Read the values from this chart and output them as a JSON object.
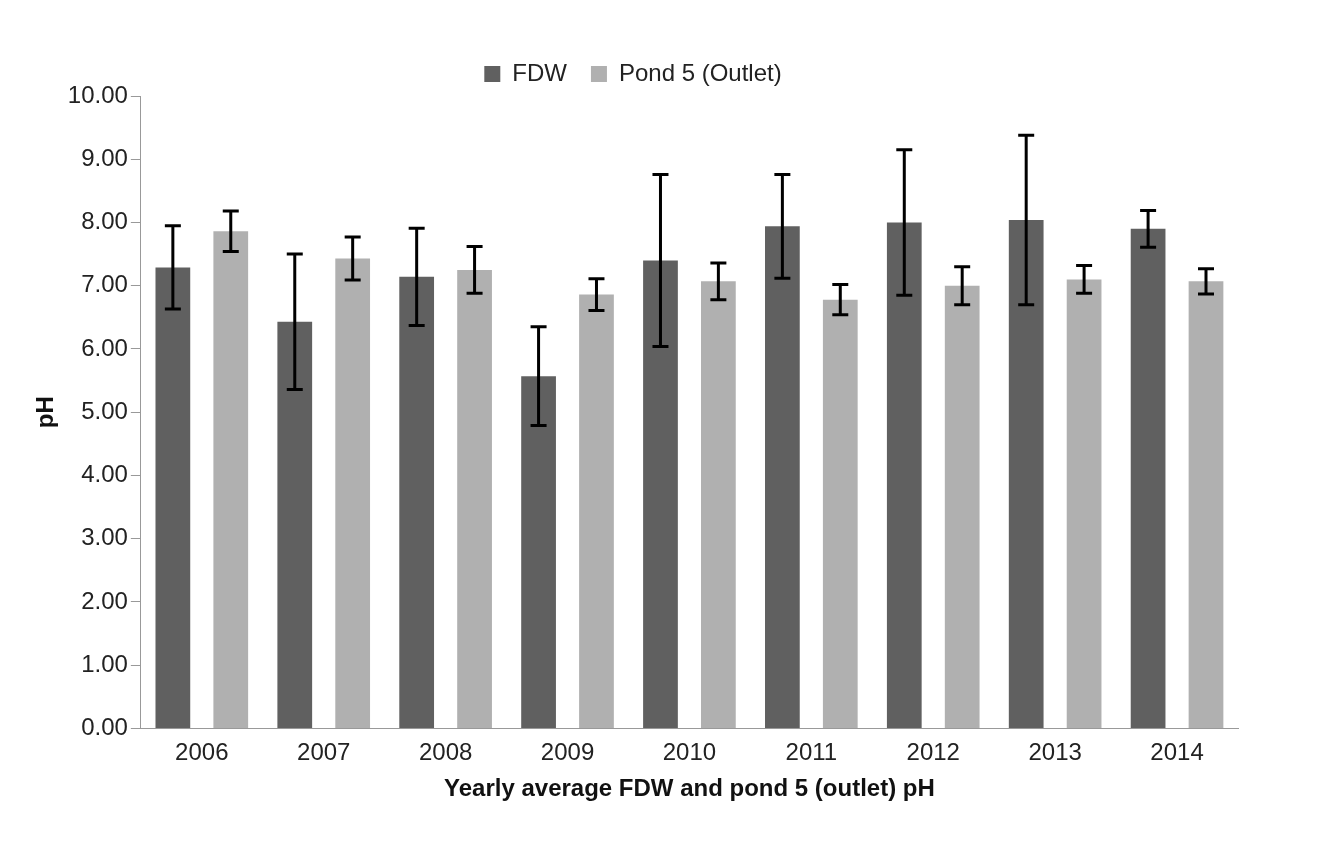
{
  "chart_data": {
    "type": "bar",
    "xlabel": "Yearly average FDW and pond 5 (outlet) pH",
    "ylabel": "pH",
    "categories": [
      "2006",
      "2007",
      "2008",
      "2009",
      "2010",
      "2011",
      "2012",
      "2013",
      "2014"
    ],
    "series": [
      {
        "name": "FDW",
        "color": "#606060",
        "values": [
          7.29,
          6.43,
          7.14,
          5.57,
          7.4,
          7.94,
          8.0,
          8.04,
          7.9
        ],
        "errors": [
          0.66,
          1.07,
          0.77,
          0.78,
          1.36,
          0.82,
          1.15,
          1.34,
          0.29
        ]
      },
      {
        "name": "Pond 5 (Outlet)",
        "color": "#b0b0b0",
        "values": [
          7.86,
          7.43,
          7.25,
          6.86,
          7.07,
          6.78,
          7.0,
          7.1,
          7.07
        ],
        "errors": [
          0.32,
          0.34,
          0.37,
          0.25,
          0.29,
          0.24,
          0.3,
          0.22,
          0.2
        ]
      }
    ],
    "ylim": [
      0,
      10
    ],
    "yticks": [
      {
        "value": 0,
        "label": "0.00"
      },
      {
        "value": 1,
        "label": "1.00"
      },
      {
        "value": 2,
        "label": "2.00"
      },
      {
        "value": 3,
        "label": "3.00"
      },
      {
        "value": 4,
        "label": "4.00"
      },
      {
        "value": 5,
        "label": "5.00"
      },
      {
        "value": 6,
        "label": "6.00"
      },
      {
        "value": 7,
        "label": "7.00"
      },
      {
        "value": 8,
        "label": "8.00"
      },
      {
        "value": 9,
        "label": "9.00"
      },
      {
        "value": 10,
        "label": "10.00"
      }
    ],
    "grid": false,
    "legend": "top"
  }
}
